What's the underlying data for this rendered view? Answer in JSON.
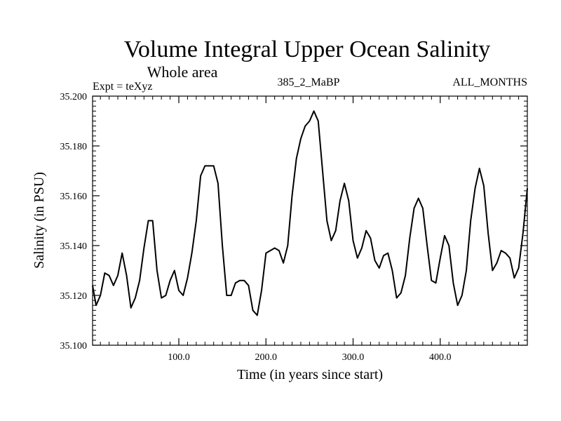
{
  "chart_data": {
    "type": "line",
    "title": "Volume Integral Upper Ocean Salinity",
    "subtitle": "Whole area",
    "header_left": "Expt = teXyz",
    "header_center": "385_2_MaBP",
    "header_right": "ALL_MONTHS",
    "xlabel": "Time (in years since start)",
    "ylabel": "Salinity (in PSU)",
    "xlim": [
      1,
      500
    ],
    "ylim": [
      35.1,
      35.2
    ],
    "x_ticks": [
      100,
      200,
      300,
      400
    ],
    "x_tick_labels": [
      "100.0",
      "200.0",
      "300.0",
      "400.0"
    ],
    "y_ticks": [
      35.1,
      35.12,
      35.14,
      35.16,
      35.18,
      35.2
    ],
    "y_tick_labels": [
      "35.100",
      "35.120",
      "35.140",
      "35.160",
      "35.180",
      "35.200"
    ],
    "grid": false,
    "series": [
      {
        "x": [
          1,
          5,
          10,
          15,
          20,
          25,
          30,
          35,
          40,
          45,
          50,
          55,
          60,
          65,
          70,
          75,
          80,
          85,
          90,
          95,
          100,
          105,
          110,
          115,
          120,
          125,
          130,
          135,
          140,
          145,
          150,
          155,
          160,
          165,
          170,
          175,
          180,
          185,
          190,
          195,
          200,
          205,
          210,
          215,
          220,
          225,
          230,
          235,
          240,
          245,
          250,
          255,
          260,
          265,
          270,
          275,
          280,
          285,
          290,
          295,
          300,
          305,
          310,
          315,
          320,
          325,
          330,
          335,
          340,
          345,
          350,
          355,
          360,
          365,
          370,
          375,
          380,
          385,
          390,
          395,
          400,
          405,
          410,
          415,
          420,
          425,
          430,
          435,
          440,
          445,
          450,
          455,
          460,
          465,
          470,
          475,
          480,
          485,
          490,
          495,
          500
        ],
        "values": [
          35.124,
          35.116,
          35.12,
          35.129,
          35.128,
          35.124,
          35.128,
          35.137,
          35.128,
          35.115,
          35.119,
          35.126,
          35.139,
          35.15,
          35.15,
          35.13,
          35.119,
          35.12,
          35.126,
          35.13,
          35.122,
          35.12,
          35.127,
          35.137,
          35.15,
          35.168,
          35.172,
          35.172,
          35.172,
          35.165,
          35.14,
          35.12,
          35.12,
          35.125,
          35.126,
          35.126,
          35.124,
          35.114,
          35.112,
          35.122,
          35.137,
          35.138,
          35.139,
          35.138,
          35.133,
          35.14,
          35.16,
          35.175,
          35.183,
          35.188,
          35.19,
          35.194,
          35.19,
          35.17,
          35.15,
          35.142,
          35.146,
          35.158,
          35.165,
          35.158,
          35.142,
          35.135,
          35.139,
          35.146,
          35.143,
          35.134,
          35.131,
          35.136,
          35.137,
          35.13,
          35.119,
          35.121,
          35.128,
          35.143,
          35.155,
          35.159,
          35.155,
          35.14,
          35.126,
          35.125,
          35.135,
          35.144,
          35.14,
          35.125,
          35.116,
          35.12,
          35.13,
          35.15,
          35.163,
          35.171,
          35.164,
          35.145,
          35.13,
          35.133,
          35.138,
          35.137,
          35.135,
          35.127,
          35.131,
          35.145,
          35.163
        ]
      }
    ]
  }
}
